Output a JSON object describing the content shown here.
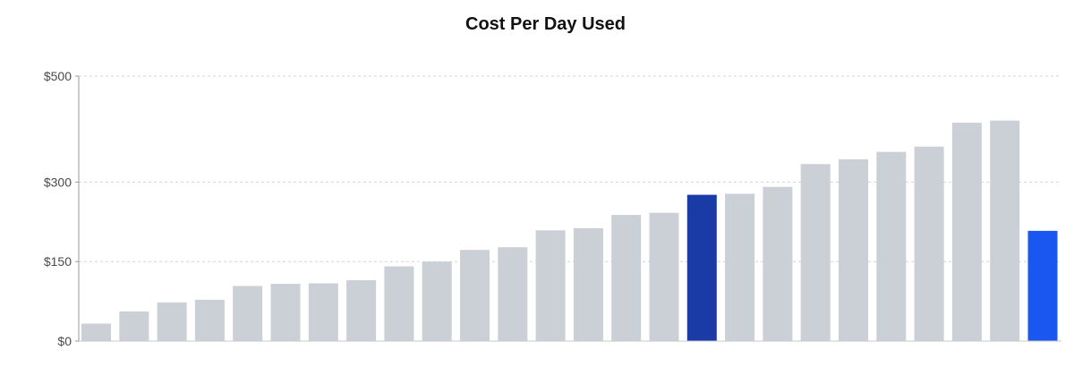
{
  "chart_data": {
    "type": "bar",
    "title": "Cost Per Day Used",
    "xlabel": "",
    "ylabel": "",
    "ylim": [
      0,
      500
    ],
    "yticks": [
      {
        "value": 0,
        "label": "$0"
      },
      {
        "value": 150,
        "label": "$150"
      },
      {
        "value": 300,
        "label": "$300"
      },
      {
        "value": 500,
        "label": "$500"
      }
    ],
    "grid": true,
    "values": [
      33,
      56,
      73,
      78,
      104,
      108,
      109,
      115,
      141,
      150,
      172,
      177,
      209,
      213,
      238,
      242,
      276,
      278,
      291,
      334,
      343,
      357,
      367,
      412,
      416,
      208
    ],
    "colors": {
      "default": "#cbcfd6",
      "highlight": "#1a3aa5",
      "accent": "#1a56f0",
      "grid": "#d4d4d4",
      "axis": "#9a9a9a"
    },
    "highlight_indices": [
      16
    ],
    "accent_indices": [
      25
    ]
  }
}
